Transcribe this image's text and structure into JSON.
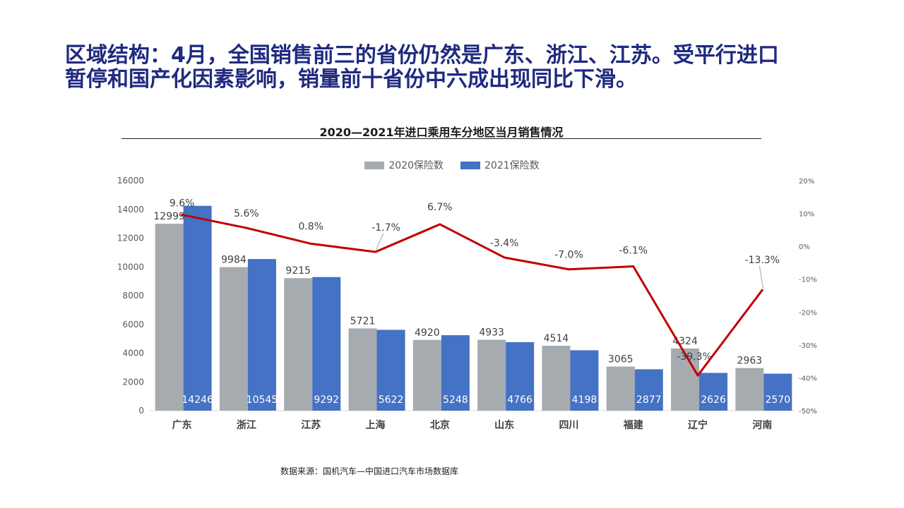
{
  "headline": {
    "line1": "区域结构：4月，全国销售前三的省份仍然是广东、浙江、江苏。受平行进口",
    "line2": "暂停和国产化因素影响，销量前十省份中六成出现同比下滑。"
  },
  "source_note": "数据来源：国机汽车—中国进口汽车市场数据库",
  "colors": {
    "s2020": "#a6abb0",
    "s2021": "#4472c4",
    "line": "#c00000",
    "headline": "#1f2a80"
  },
  "chart_data": {
    "type": "bar",
    "title": "2020—2021年进口乘用车分地区当月销售情况",
    "categories": [
      "广东",
      "浙江",
      "江苏",
      "上海",
      "北京",
      "山东",
      "四川",
      "福建",
      "辽宁",
      "河南"
    ],
    "series": [
      {
        "name": "2020保险数",
        "values": [
          12999,
          9984,
          9215,
          5721,
          4920,
          4933,
          4514,
          3065,
          4324,
          2963
        ]
      },
      {
        "name": "2021保险数",
        "values": [
          14246,
          10545,
          9292,
          5622,
          5248,
          4766,
          4198,
          2877,
          2626,
          2570
        ]
      }
    ],
    "growth": {
      "type": "line",
      "values": [
        9.6,
        5.6,
        0.8,
        -1.7,
        6.7,
        -3.4,
        -7.0,
        -6.1,
        -39.3,
        -13.3
      ],
      "labels": [
        "9.6%",
        "5.6%",
        "0.8%",
        "-1.7%",
        "6.7%",
        "-3.4%",
        "-7.0%",
        "-6.1%",
        "-39.3%",
        "-13.3%"
      ]
    },
    "y_left": {
      "min": 0,
      "max": 16000,
      "ticks": [
        "0",
        "2000",
        "4000",
        "6000",
        "8000",
        "10000",
        "12000",
        "14000",
        "16000"
      ]
    },
    "y_right": {
      "min": -50,
      "max": 20,
      "ticks": [
        "-50%",
        "-40%",
        "-30%",
        "-20%",
        "-10%",
        "0%",
        "10%",
        "20%"
      ]
    },
    "legend_position": "top"
  }
}
